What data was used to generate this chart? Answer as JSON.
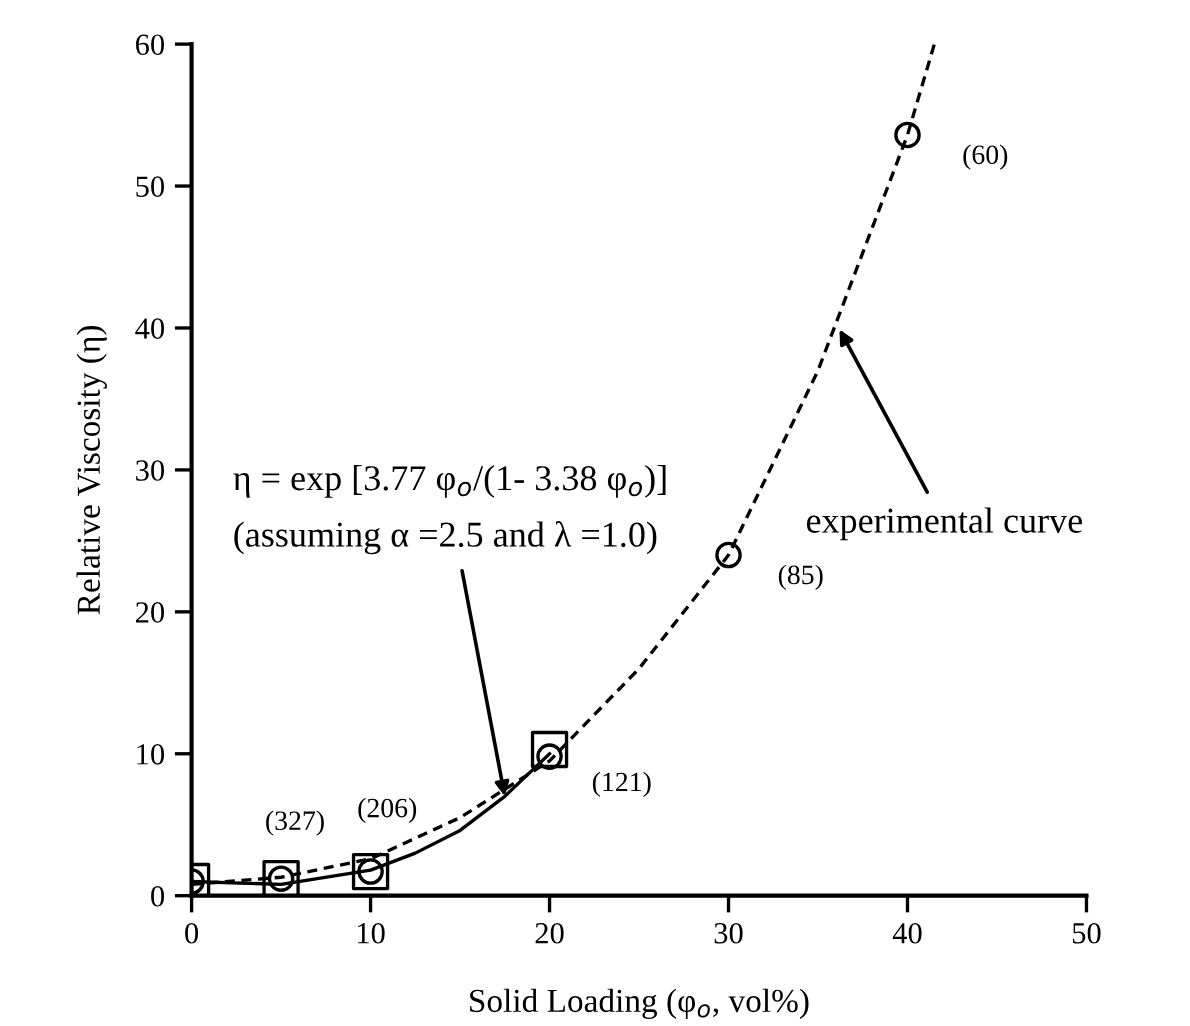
{
  "chart_data": {
    "type": "scatter",
    "xlabel": "Solid Loading (φ$_{o}$, vol%)",
    "ylabel": "Relative Viscosity (η)",
    "xlim": [
      0,
      50
    ],
    "xticks": [
      0,
      10,
      20,
      30,
      40,
      50
    ],
    "ylim": [
      0,
      60
    ],
    "yticks": [
      0,
      10,
      20,
      30,
      40,
      50,
      60
    ],
    "grid": false,
    "legend": false,
    "series": [
      {
        "type": "line",
        "color": "#000000",
        "line_style": "dashed",
        "marker": "none",
        "x": [
          0,
          5,
          10,
          15,
          20,
          25,
          30,
          35,
          40,
          41.5
        ],
        "values": [
          0.8,
          1.3,
          2.6,
          5.5,
          9.5,
          16,
          24,
          37,
          53.6,
          60
        ]
      },
      {
        "type": "line",
        "color": "#000000",
        "line_style": "solid",
        "marker": "none",
        "x": [
          0,
          5,
          10,
          12.5,
          15,
          17.5,
          20
        ],
        "values": [
          1,
          0.8,
          1.8,
          3.0,
          4.6,
          7.0,
          10.0
        ]
      },
      {
        "color": "#000000",
        "marker": "square",
        "x": [
          0,
          5,
          10,
          20
        ],
        "values": [
          1,
          1.2,
          1.7,
          10.3
        ]
      },
      {
        "color": "#000000",
        "marker": "circle",
        "x": [
          0,
          5,
          10,
          20,
          30,
          40
        ],
        "values": [
          1,
          1.2,
          1.7,
          9.8,
          24,
          53.6
        ]
      }
    ],
    "annotations": [
      {
        "text": "(327)",
        "x": 5,
        "y": 1.2
      },
      {
        "text": "(206)",
        "x": 10,
        "y": 1.7
      },
      {
        "text": "(121)",
        "x": 20,
        "y": 9.8
      },
      {
        "text": "(85)",
        "x": 30,
        "y": 24
      },
      {
        "text": "(60)",
        "x": 40,
        "y": 53.6
      },
      {
        "text": "η = exp [3.77 φ$_{o}$/(1- 3.38 φ$_{o}$)]\n(assuming α =2.5 and λ =1.0)",
        "x": 17.5,
        "y": 7.0
      },
      {
        "text": "experimental curve",
        "x": 36.2,
        "y": 39.9
      }
    ]
  }
}
